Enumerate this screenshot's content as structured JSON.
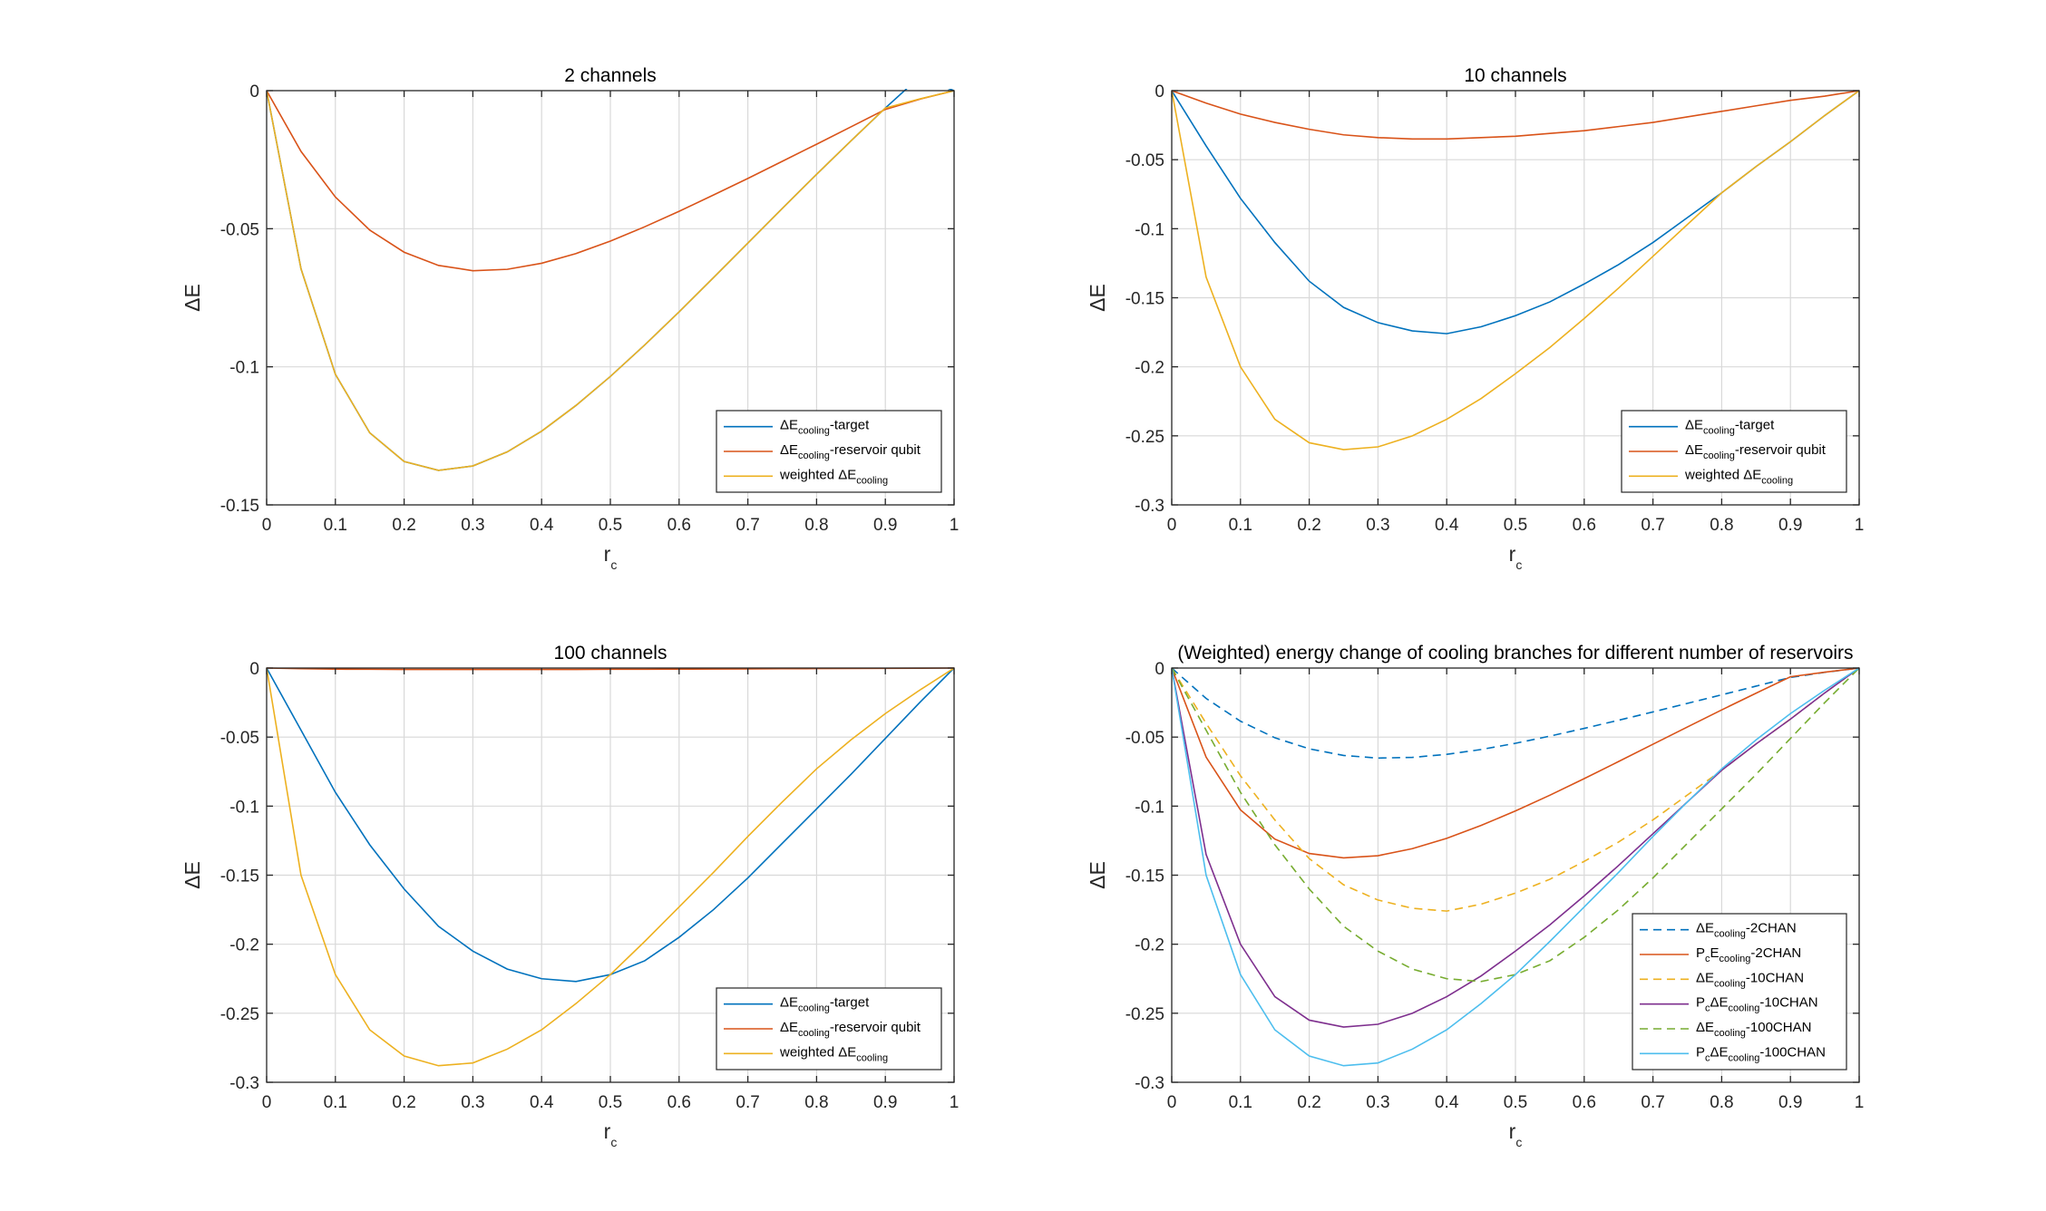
{
  "chart_data": [
    {
      "type": "line",
      "title": "2 channels",
      "xlabel": "r",
      "xlabel_sub": "c",
      "ylabel": "ΔE",
      "xlim": [
        0,
        1
      ],
      "ylim": [
        -0.15,
        0
      ],
      "xticks": [
        0,
        0.1,
        0.2,
        0.3,
        0.4,
        0.5,
        0.6,
        0.7,
        0.8,
        0.9,
        1
      ],
      "xtick_labels": [
        "0",
        "0.1",
        "0.2",
        "0.3",
        "0.4",
        "0.5",
        "0.6",
        "0.7",
        "0.8",
        "0.9",
        "1"
      ],
      "yticks": [
        -0.15,
        -0.1,
        -0.05,
        0
      ],
      "ytick_labels": [
        "-0.15",
        "-0.1",
        "-0.05",
        "0"
      ],
      "grid": true,
      "legend_position": "bottom-right",
      "x": [
        0,
        0.05,
        0.1,
        0.15,
        0.2,
        0.25,
        0.3,
        0.35,
        0.4,
        0.45,
        0.5,
        0.55,
        0.6,
        0.65,
        0.7,
        0.75,
        0.8,
        0.85,
        0.9,
        0.95,
        1
      ],
      "series": [
        {
          "name": "ΔE_cooling-target",
          "legend": [
            [
              "ΔE",
              ""
            ],
            [
              "cooling",
              "sub"
            ],
            [
              "-target",
              ""
            ]
          ],
          "color": "#0072BD",
          "dash": "solid",
          "values": [
            0,
            -0.0645,
            -0.1027,
            -0.1239,
            -0.1343,
            -0.1375,
            -0.1359,
            -0.1308,
            -0.1233,
            -0.114,
            -0.1035,
            -0.0921,
            -0.0801,
            -0.0677,
            -0.0552,
            -0.0427,
            -0.0303,
            -0.0182,
            -0.0063,
            0.005,
            0
          ]
        },
        {
          "name": "ΔE_cooling-reservoir qubit",
          "legend": [
            [
              "ΔE",
              ""
            ],
            [
              "cooling",
              "sub"
            ],
            [
              "-reservoir qubit",
              ""
            ]
          ],
          "color": "#D95319",
          "dash": "solid",
          "values": [
            0,
            -0.022,
            -0.0385,
            -0.0505,
            -0.0585,
            -0.0633,
            -0.0652,
            -0.0647,
            -0.0625,
            -0.059,
            -0.0545,
            -0.0493,
            -0.0437,
            -0.0378,
            -0.0318,
            -0.0256,
            -0.0194,
            -0.0131,
            -0.0068,
            -0.0031,
            0
          ]
        },
        {
          "name": "weighted ΔE_cooling",
          "legend": [
            [
              "weighted ΔE",
              ""
            ],
            [
              "cooling",
              "sub"
            ]
          ],
          "color": "#EDB120",
          "dash": "solid",
          "values": [
            0,
            -0.0645,
            -0.1027,
            -0.1239,
            -0.1343,
            -0.1375,
            -0.1359,
            -0.1308,
            -0.1233,
            -0.114,
            -0.1035,
            -0.0921,
            -0.0801,
            -0.0677,
            -0.0552,
            -0.0427,
            -0.0303,
            -0.0182,
            -0.0063,
            -0.003,
            0
          ]
        }
      ]
    },
    {
      "type": "line",
      "title": "10 channels",
      "xlabel": "r",
      "xlabel_sub": "c",
      "ylabel": "ΔE",
      "xlim": [
        0,
        1
      ],
      "ylim": [
        -0.3,
        0
      ],
      "xticks": [
        0,
        0.1,
        0.2,
        0.3,
        0.4,
        0.5,
        0.6,
        0.7,
        0.8,
        0.9,
        1
      ],
      "xtick_labels": [
        "0",
        "0.1",
        "0.2",
        "0.3",
        "0.4",
        "0.5",
        "0.6",
        "0.7",
        "0.8",
        "0.9",
        "1"
      ],
      "yticks": [
        -0.3,
        -0.25,
        -0.2,
        -0.15,
        -0.1,
        -0.05,
        0
      ],
      "ytick_labels": [
        "-0.3",
        "-0.25",
        "-0.2",
        "-0.15",
        "-0.1",
        "-0.05",
        "0"
      ],
      "grid": true,
      "legend_position": "bottom-right",
      "x": [
        0,
        0.05,
        0.1,
        0.15,
        0.2,
        0.25,
        0.3,
        0.35,
        0.4,
        0.45,
        0.5,
        0.55,
        0.6,
        0.65,
        0.7,
        0.75,
        0.8,
        0.85,
        0.9,
        0.95,
        1
      ],
      "series": [
        {
          "name": "ΔE_cooling-target",
          "legend": [
            [
              "ΔE",
              ""
            ],
            [
              "cooling",
              "sub"
            ],
            [
              "-target",
              ""
            ]
          ],
          "color": "#0072BD",
          "dash": "solid",
          "values": [
            0,
            -0.04,
            -0.078,
            -0.11,
            -0.138,
            -0.157,
            -0.168,
            -0.174,
            -0.176,
            -0.171,
            -0.163,
            -0.153,
            -0.14,
            -0.126,
            -0.11,
            -0.092,
            -0.074,
            -0.055,
            -0.037,
            -0.018,
            0
          ]
        },
        {
          "name": "ΔE_cooling-reservoir qubit",
          "legend": [
            [
              "ΔE",
              ""
            ],
            [
              "cooling",
              "sub"
            ],
            [
              "-reservoir qubit",
              ""
            ]
          ],
          "color": "#D95319",
          "dash": "solid",
          "values": [
            0,
            -0.009,
            -0.017,
            -0.023,
            -0.028,
            -0.032,
            -0.034,
            -0.035,
            -0.035,
            -0.034,
            -0.033,
            -0.031,
            -0.029,
            -0.026,
            -0.023,
            -0.019,
            -0.015,
            -0.011,
            -0.007,
            -0.004,
            0
          ]
        },
        {
          "name": "weighted ΔE_cooling",
          "legend": [
            [
              "weighted ΔE",
              ""
            ],
            [
              "cooling",
              "sub"
            ]
          ],
          "color": "#EDB120",
          "dash": "solid",
          "values": [
            0,
            -0.135,
            -0.2,
            -0.238,
            -0.255,
            -0.26,
            -0.258,
            -0.25,
            -0.238,
            -0.223,
            -0.205,
            -0.186,
            -0.165,
            -0.143,
            -0.12,
            -0.097,
            -0.074,
            -0.055,
            -0.037,
            -0.018,
            0
          ]
        }
      ]
    },
    {
      "type": "line",
      "title": "100 channels",
      "xlabel": "r",
      "xlabel_sub": "c",
      "ylabel": "ΔE",
      "xlim": [
        0,
        1
      ],
      "ylim": [
        -0.3,
        0
      ],
      "xticks": [
        0,
        0.1,
        0.2,
        0.3,
        0.4,
        0.5,
        0.6,
        0.7,
        0.8,
        0.9,
        1
      ],
      "xtick_labels": [
        "0",
        "0.1",
        "0.2",
        "0.3",
        "0.4",
        "0.5",
        "0.6",
        "0.7",
        "0.8",
        "0.9",
        "1"
      ],
      "yticks": [
        -0.3,
        -0.25,
        -0.2,
        -0.15,
        -0.1,
        -0.05,
        0
      ],
      "ytick_labels": [
        "-0.3",
        "-0.25",
        "-0.2",
        "-0.15",
        "-0.1",
        "-0.05",
        "0"
      ],
      "grid": true,
      "legend_position": "bottom-right",
      "x": [
        0,
        0.05,
        0.1,
        0.15,
        0.2,
        0.25,
        0.3,
        0.35,
        0.4,
        0.45,
        0.5,
        0.55,
        0.6,
        0.65,
        0.7,
        0.75,
        0.8,
        0.85,
        0.9,
        0.95,
        1
      ],
      "series": [
        {
          "name": "ΔE_cooling-target",
          "legend": [
            [
              "ΔE",
              ""
            ],
            [
              "cooling",
              "sub"
            ],
            [
              "-target",
              ""
            ]
          ],
          "color": "#0072BD",
          "dash": "solid",
          "values": [
            0,
            -0.045,
            -0.09,
            -0.128,
            -0.16,
            -0.187,
            -0.205,
            -0.218,
            -0.225,
            -0.227,
            -0.222,
            -0.212,
            -0.195,
            -0.175,
            -0.152,
            -0.127,
            -0.102,
            -0.077,
            -0.051,
            -0.025,
            0
          ]
        },
        {
          "name": "ΔE_cooling-reservoir qubit",
          "legend": [
            [
              "ΔE",
              ""
            ],
            [
              "cooling",
              "sub"
            ],
            [
              "-reservoir qubit",
              ""
            ]
          ],
          "color": "#D95319",
          "dash": "solid",
          "values": [
            0,
            -0.0005,
            -0.0008,
            -0.0009,
            -0.001,
            -0.001,
            -0.001,
            -0.001,
            -0.001,
            -0.001,
            -0.0009,
            -0.0009,
            -0.0008,
            -0.0007,
            -0.0006,
            -0.0005,
            -0.0004,
            -0.0003,
            -0.0002,
            -0.0001,
            0
          ]
        },
        {
          "name": "weighted ΔE_cooling",
          "legend": [
            [
              "weighted ΔE",
              ""
            ],
            [
              "cooling",
              "sub"
            ]
          ],
          "color": "#EDB120",
          "dash": "solid",
          "values": [
            0,
            -0.15,
            -0.222,
            -0.262,
            -0.281,
            -0.288,
            -0.286,
            -0.276,
            -0.262,
            -0.243,
            -0.222,
            -0.198,
            -0.173,
            -0.148,
            -0.122,
            -0.097,
            -0.073,
            -0.052,
            -0.033,
            -0.016,
            0
          ]
        }
      ]
    },
    {
      "type": "line",
      "title": "(Weighted) energy change of cooling branches for different number of reservoirs",
      "xlabel": "r",
      "xlabel_sub": "c",
      "ylabel": "ΔE",
      "xlim": [
        0,
        1
      ],
      "ylim": [
        -0.3,
        0
      ],
      "xticks": [
        0,
        0.1,
        0.2,
        0.3,
        0.4,
        0.5,
        0.6,
        0.7,
        0.8,
        0.9,
        1
      ],
      "xtick_labels": [
        "0",
        "0.1",
        "0.2",
        "0.3",
        "0.4",
        "0.5",
        "0.6",
        "0.7",
        "0.8",
        "0.9",
        "1"
      ],
      "yticks": [
        -0.3,
        -0.25,
        -0.2,
        -0.15,
        -0.1,
        -0.05,
        0
      ],
      "ytick_labels": [
        "-0.3",
        "-0.25",
        "-0.2",
        "-0.15",
        "-0.1",
        "-0.05",
        "0"
      ],
      "grid": true,
      "legend_position": "bottom-right",
      "x": [
        0,
        0.05,
        0.1,
        0.15,
        0.2,
        0.25,
        0.3,
        0.35,
        0.4,
        0.45,
        0.5,
        0.55,
        0.6,
        0.65,
        0.7,
        0.75,
        0.8,
        0.85,
        0.9,
        0.95,
        1
      ],
      "series": [
        {
          "name": "ΔE_cooling-2CHAN",
          "legend": [
            [
              "ΔE",
              ""
            ],
            [
              "cooling",
              "sub"
            ],
            [
              "-2CHAN",
              ""
            ]
          ],
          "color": "#0072BD",
          "dash": "dashed",
          "values": [
            0,
            -0.022,
            -0.0385,
            -0.0505,
            -0.0585,
            -0.0633,
            -0.0652,
            -0.0647,
            -0.0625,
            -0.059,
            -0.0545,
            -0.0493,
            -0.0437,
            -0.0378,
            -0.0318,
            -0.0256,
            -0.0194,
            -0.0131,
            -0.0068,
            -0.0031,
            0
          ]
        },
        {
          "name": "P_cE_cooling-2CHAN",
          "legend": [
            [
              "P",
              ""
            ],
            [
              "c",
              "sub"
            ],
            [
              "E",
              ""
            ],
            [
              "cooling",
              "sub"
            ],
            [
              "-2CHAN",
              ""
            ]
          ],
          "color": "#D95319",
          "dash": "solid",
          "values": [
            0,
            -0.0645,
            -0.1027,
            -0.1239,
            -0.1343,
            -0.1375,
            -0.1359,
            -0.1308,
            -0.1233,
            -0.114,
            -0.1035,
            -0.0921,
            -0.0801,
            -0.0677,
            -0.0552,
            -0.0427,
            -0.0303,
            -0.0182,
            -0.0063,
            -0.003,
            0
          ]
        },
        {
          "name": "ΔE_cooling-10CHAN",
          "legend": [
            [
              "ΔE",
              ""
            ],
            [
              "cooling",
              "sub"
            ],
            [
              "-10CHAN",
              ""
            ]
          ],
          "color": "#EDB120",
          "dash": "dashed",
          "values": [
            0,
            -0.04,
            -0.078,
            -0.11,
            -0.138,
            -0.157,
            -0.168,
            -0.174,
            -0.176,
            -0.171,
            -0.163,
            -0.153,
            -0.14,
            -0.126,
            -0.11,
            -0.092,
            -0.074,
            -0.055,
            -0.037,
            -0.018,
            0
          ]
        },
        {
          "name": "P_cΔE_cooling-10CHAN",
          "legend": [
            [
              "P",
              ""
            ],
            [
              "c",
              "sub"
            ],
            [
              "ΔE",
              ""
            ],
            [
              "cooling",
              "sub"
            ],
            [
              "-10CHAN",
              ""
            ]
          ],
          "color": "#7E2F8E",
          "dash": "solid",
          "values": [
            0,
            -0.135,
            -0.2,
            -0.238,
            -0.255,
            -0.26,
            -0.258,
            -0.25,
            -0.238,
            -0.223,
            -0.205,
            -0.186,
            -0.165,
            -0.143,
            -0.12,
            -0.097,
            -0.074,
            -0.055,
            -0.037,
            -0.018,
            0
          ]
        },
        {
          "name": "ΔE_cooling-100CHAN",
          "legend": [
            [
              "ΔE",
              ""
            ],
            [
              "cooling",
              "sub"
            ],
            [
              "-100CHAN",
              ""
            ]
          ],
          "color": "#77AC30",
          "dash": "dashed",
          "values": [
            0,
            -0.045,
            -0.09,
            -0.128,
            -0.16,
            -0.187,
            -0.205,
            -0.218,
            -0.225,
            -0.227,
            -0.222,
            -0.212,
            -0.195,
            -0.175,
            -0.152,
            -0.127,
            -0.102,
            -0.077,
            -0.051,
            -0.025,
            0
          ]
        },
        {
          "name": "P_cΔE_cooling-100CHAN",
          "legend": [
            [
              "P",
              ""
            ],
            [
              "c",
              "sub"
            ],
            [
              "ΔE",
              ""
            ],
            [
              "cooling",
              "sub"
            ],
            [
              "-100CHAN",
              ""
            ]
          ],
          "color": "#4DBEEE",
          "dash": "solid",
          "values": [
            0,
            -0.15,
            -0.222,
            -0.262,
            -0.281,
            -0.288,
            -0.286,
            -0.276,
            -0.262,
            -0.243,
            -0.222,
            -0.198,
            -0.173,
            -0.148,
            -0.122,
            -0.097,
            -0.073,
            -0.052,
            -0.033,
            -0.016,
            0
          ]
        }
      ]
    }
  ]
}
